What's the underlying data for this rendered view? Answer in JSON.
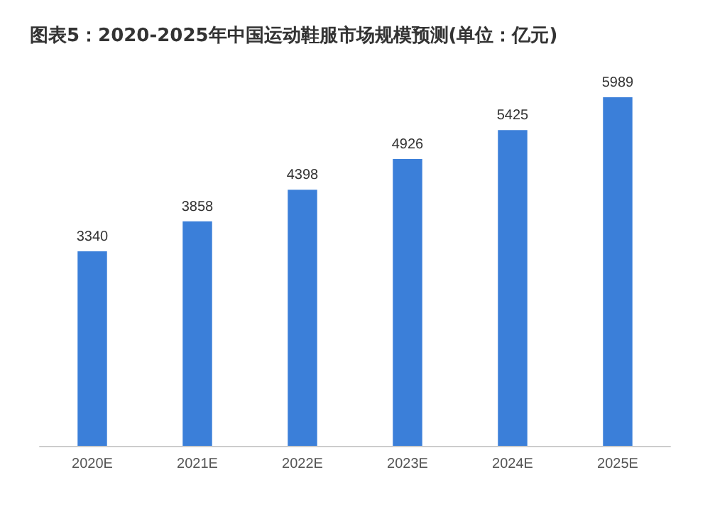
{
  "chart_data": {
    "type": "bar",
    "title": "图表5：2020-2025年中国运动鞋服市场规模预测(单位：亿元)",
    "categories": [
      "2020E",
      "2021E",
      "2022E",
      "2023E",
      "2024E",
      "2025E"
    ],
    "values": [
      3340,
      3858,
      4398,
      4926,
      5425,
      5989
    ],
    "color": "#3b7fd9",
    "data_labels": true
  }
}
